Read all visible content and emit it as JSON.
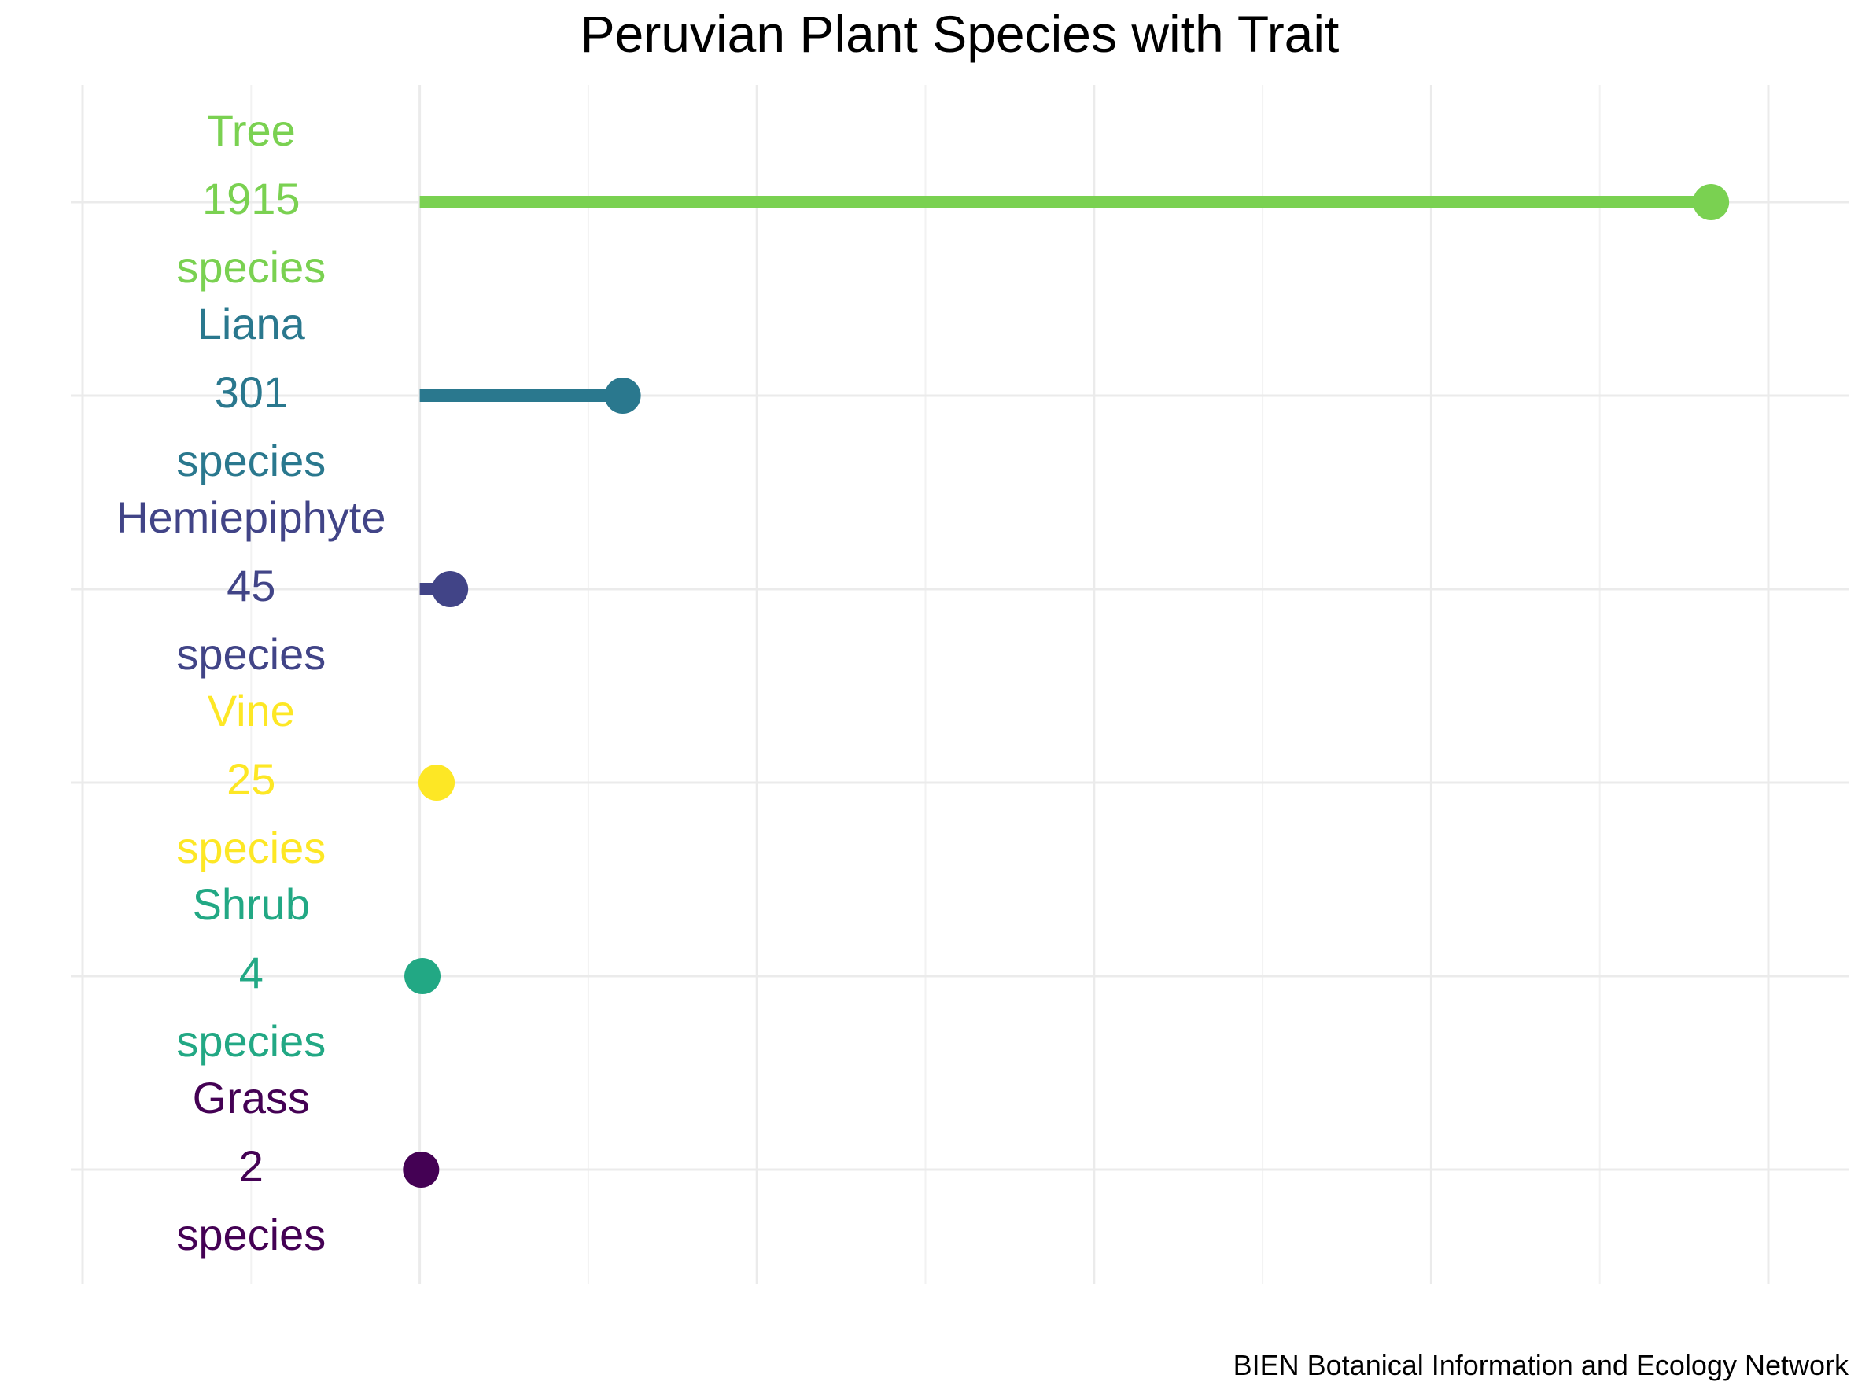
{
  "chart_data": {
    "type": "lollipop",
    "title": "Peruvian Plant Species with Trait",
    "caption": "BIEN Botanical Information and Ecology Network",
    "xlabel": "",
    "ylabel": "",
    "xlim": [
      -500,
      2000
    ],
    "grid": true,
    "unit_label": "species",
    "categories": [
      "Tree",
      "Liana",
      "Hemiepiphyte",
      "Vine",
      "Shrub",
      "Grass"
    ],
    "values": [
      1915,
      301,
      45,
      25,
      4,
      2
    ],
    "colors": [
      "#7AD151",
      "#2A788E",
      "#414487",
      "#FDE725",
      "#22A884",
      "#440154"
    ]
  }
}
